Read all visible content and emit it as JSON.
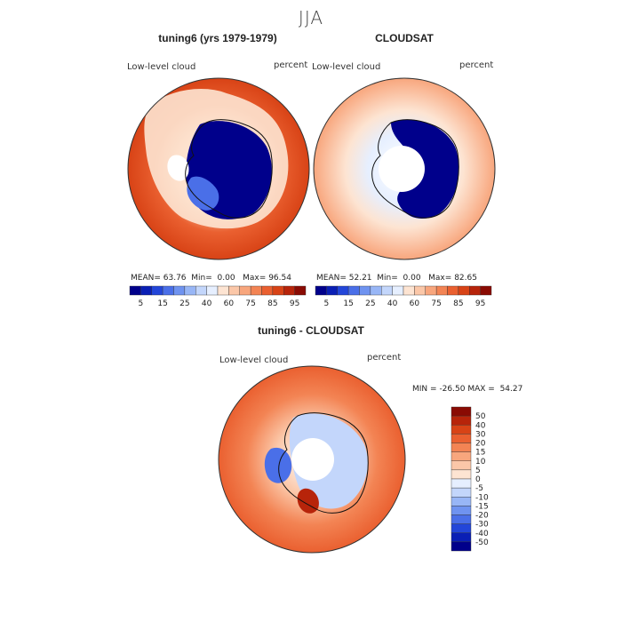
{
  "season": "JJA",
  "panels": [
    {
      "title": "tuning6 (yrs 1979-1979)",
      "variable": "Low-level cloud",
      "units": "percent",
      "stats": {
        "mean_label": "MEAN=",
        "mean": "63.76",
        "min_label": "Min=",
        "min": "0.00",
        "max_label": "Max=",
        "max": "96.54"
      }
    },
    {
      "title": "CLOUDSAT",
      "variable": "Low-level cloud",
      "units": "percent",
      "stats": {
        "mean_label": "MEAN=",
        "mean": "52.21",
        "min_label": "Min=",
        "min": "0.00",
        "max_label": "Max=",
        "max": "82.65"
      }
    },
    {
      "title": "tuning6 - CLOUDSAT",
      "variable": "Low-level cloud",
      "units": "percent",
      "stats": {
        "min_label": "MIN =",
        "min": "-26.50",
        "max_label": "MAX =",
        "max": "54.27"
      }
    }
  ],
  "chart_data": [
    {
      "type": "heatmap",
      "title": "tuning6 (yrs 1979-1979)",
      "projection": "south-polar-stereographic",
      "variable": "Low-level cloud",
      "units": "percent",
      "mean": 63.76,
      "min": 0.0,
      "max": 96.54,
      "colorbar": {
        "levels": [
          5,
          10,
          15,
          20,
          25,
          30,
          40,
          50,
          60,
          65,
          70,
          75,
          80,
          85,
          90,
          95
        ],
        "tick_labels": [
          "5",
          "15",
          "25",
          "40",
          "60",
          "75",
          "85",
          "95"
        ],
        "colors": [
          "#00008b",
          "#0a1fb5",
          "#2346d9",
          "#4a6fe8",
          "#6f93f0",
          "#98b6f6",
          "#c3d6fb",
          "#e6efff",
          "#fde4d2",
          "#fbc7a8",
          "#f8a67d",
          "#f38454",
          "#ea6030",
          "#d84316",
          "#b7240a",
          "#8a0b03"
        ]
      }
    },
    {
      "type": "heatmap",
      "title": "CLOUDSAT",
      "projection": "south-polar-stereographic",
      "variable": "Low-level cloud",
      "units": "percent",
      "mean": 52.21,
      "min": 0.0,
      "max": 82.65,
      "colorbar": {
        "levels": [
          5,
          10,
          15,
          20,
          25,
          30,
          40,
          50,
          60,
          65,
          70,
          75,
          80,
          85,
          90,
          95
        ],
        "tick_labels": [
          "5",
          "15",
          "25",
          "40",
          "60",
          "75",
          "85",
          "95"
        ],
        "colors": [
          "#00008b",
          "#0a1fb5",
          "#2346d9",
          "#4a6fe8",
          "#6f93f0",
          "#98b6f6",
          "#c3d6fb",
          "#e6efff",
          "#fde4d2",
          "#fbc7a8",
          "#f8a67d",
          "#f38454",
          "#ea6030",
          "#d84316",
          "#b7240a",
          "#8a0b03"
        ]
      }
    },
    {
      "type": "heatmap",
      "title": "tuning6 - CLOUDSAT",
      "projection": "south-polar-stereographic",
      "variable": "Low-level cloud",
      "units": "percent",
      "min": -26.5,
      "max": 54.27,
      "colorbar": {
        "tick_labels": [
          "50",
          "40",
          "30",
          "20",
          "15",
          "10",
          "5",
          "0",
          "-5",
          "-10",
          "-15",
          "-20",
          "-30",
          "-40",
          "-50"
        ],
        "colors": [
          "#8a0b03",
          "#b7240a",
          "#d84316",
          "#ea6030",
          "#f38454",
          "#f8a67d",
          "#fbc7a8",
          "#fde4d2",
          "#e6efff",
          "#c3d6fb",
          "#98b6f6",
          "#6f93f0",
          "#4a6fe8",
          "#2346d9",
          "#0a1fb5",
          "#00008b"
        ]
      }
    }
  ]
}
